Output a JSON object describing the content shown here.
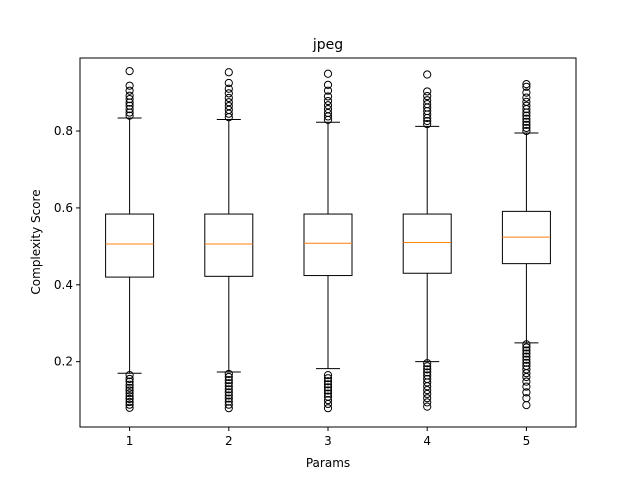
{
  "chart_data": {
    "type": "boxplot",
    "title": "jpeg",
    "xlabel": "Params",
    "ylabel": "Complexity Score",
    "ylim": [
      0.03,
      0.99
    ],
    "yticks": [
      0.2,
      0.4,
      0.6,
      0.8
    ],
    "ytick_labels": [
      "0.2",
      "0.4",
      "0.6",
      "0.8"
    ],
    "grid": false,
    "colors": {
      "box": "#000000",
      "median": "#ff7f0e",
      "outlier": "#000000"
    },
    "boxes": [
      {
        "label": "1",
        "whisker_low": 0.17,
        "q1": 0.42,
        "median": 0.506,
        "q3": 0.584,
        "whisker_high": 0.834,
        "outliers_low": [
          0.165,
          0.155,
          0.148,
          0.14,
          0.132,
          0.125,
          0.118,
          0.11,
          0.103,
          0.095,
          0.088,
          0.08
        ],
        "outliers_high": [
          0.84,
          0.848,
          0.857,
          0.866,
          0.874,
          0.883,
          0.892,
          0.905,
          0.918,
          0.956
        ]
      },
      {
        "label": "2",
        "whisker_low": 0.173,
        "q1": 0.422,
        "median": 0.506,
        "q3": 0.584,
        "whisker_high": 0.83,
        "outliers_low": [
          0.168,
          0.16,
          0.152,
          0.144,
          0.136,
          0.128,
          0.12,
          0.112,
          0.104,
          0.096,
          0.088,
          0.079
        ],
        "outliers_high": [
          0.836,
          0.845,
          0.855,
          0.865,
          0.875,
          0.886,
          0.898,
          0.91,
          0.925,
          0.953
        ]
      },
      {
        "label": "3",
        "whisker_low": 0.182,
        "q1": 0.424,
        "median": 0.508,
        "q3": 0.584,
        "whisker_high": 0.823,
        "outliers_low": [
          0.165,
          0.157,
          0.149,
          0.141,
          0.133,
          0.125,
          0.117,
          0.109,
          0.1,
          0.09,
          0.079
        ],
        "outliers_high": [
          0.829,
          0.838,
          0.847,
          0.857,
          0.867,
          0.878,
          0.89,
          0.905,
          0.92,
          0.949
        ]
      },
      {
        "label": "4",
        "whisker_low": 0.2,
        "q1": 0.43,
        "median": 0.51,
        "q3": 0.584,
        "whisker_high": 0.812,
        "outliers_low": [
          0.196,
          0.188,
          0.18,
          0.172,
          0.164,
          0.155,
          0.146,
          0.136,
          0.126,
          0.116,
          0.105,
          0.094,
          0.083
        ],
        "outliers_high": [
          0.818,
          0.826,
          0.834,
          0.843,
          0.852,
          0.861,
          0.87,
          0.88,
          0.891,
          0.903,
          0.947
        ]
      },
      {
        "label": "5",
        "whisker_low": 0.249,
        "q1": 0.455,
        "median": 0.524,
        "q3": 0.591,
        "whisker_high": 0.795,
        "outliers_low": [
          0.245,
          0.237,
          0.229,
          0.221,
          0.213,
          0.205,
          0.197,
          0.189,
          0.18,
          0.17,
          0.16,
          0.148,
          0.135,
          0.12,
          0.105,
          0.087
        ],
        "outliers_high": [
          0.8,
          0.808,
          0.816,
          0.824,
          0.832,
          0.84,
          0.848,
          0.857,
          0.866,
          0.876,
          0.887,
          0.9,
          0.915,
          0.922
        ]
      }
    ]
  }
}
